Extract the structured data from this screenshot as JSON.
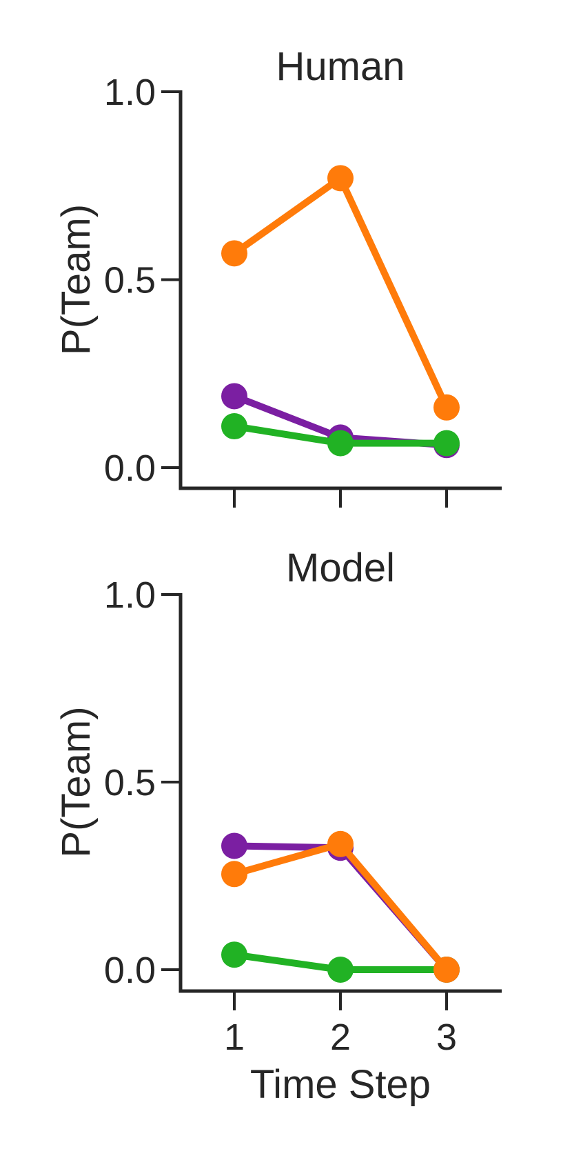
{
  "chart_data": [
    {
      "type": "line",
      "title": "Human",
      "xlabel": "",
      "ylabel": "P(Team)",
      "x": [
        1,
        2,
        3
      ],
      "x_tick_labels_visible": false,
      "ylim": [
        -0.05,
        1.0
      ],
      "yticks": [
        "0.0",
        "0.5",
        "1.0"
      ],
      "grid": false,
      "series": [
        {
          "color": "#7b1fa2",
          "values": [
            0.19,
            0.08,
            0.06
          ]
        },
        {
          "color": "#21b224",
          "values": [
            0.11,
            0.065,
            0.065
          ]
        },
        {
          "color": "#ff7b0a",
          "values": [
            0.57,
            0.77,
            0.16
          ]
        }
      ]
    },
    {
      "type": "line",
      "title": "Model",
      "xlabel": "Time Step",
      "ylabel": "P(Team)",
      "x": [
        1,
        2,
        3
      ],
      "x_tick_labels_visible": true,
      "xticks": [
        "1",
        "2",
        "3"
      ],
      "ylim": [
        -0.05,
        1.0
      ],
      "yticks": [
        "0.0",
        "0.5",
        "1.0"
      ],
      "grid": false,
      "series": [
        {
          "color": "#7b1fa2",
          "values": [
            0.33,
            0.325,
            0.0
          ]
        },
        {
          "color": "#21b224",
          "values": [
            0.04,
            0.0,
            0.0
          ]
        },
        {
          "color": "#ff7b0a",
          "values": [
            0.255,
            0.335,
            0.0
          ]
        }
      ]
    }
  ]
}
